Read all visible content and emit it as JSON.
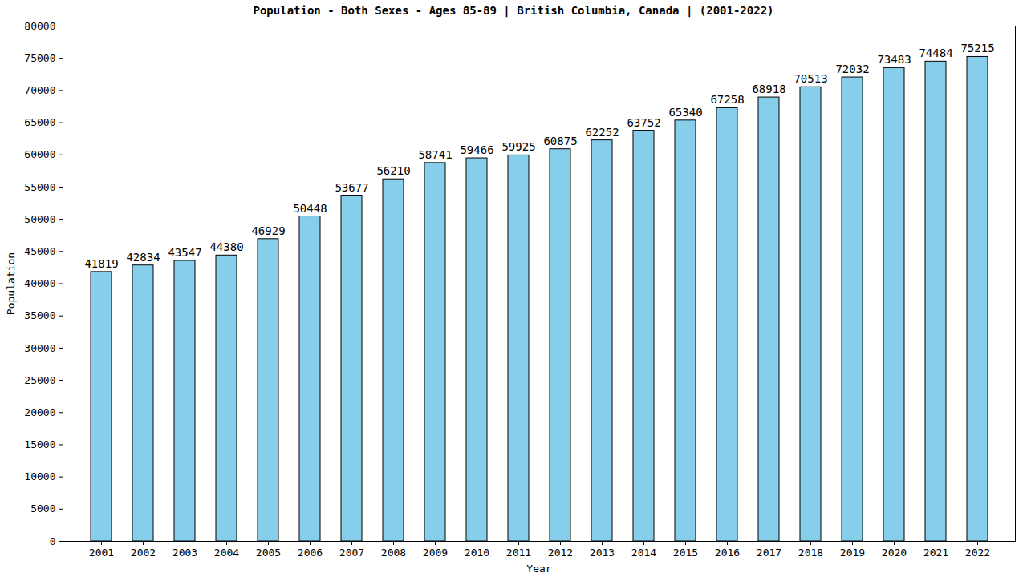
{
  "chart_data": {
    "type": "bar",
    "title": "Population - Both Sexes - Ages 85-89 | British Columbia, Canada |  (2001-2022)",
    "x_label": "Year",
    "y_label": "Population",
    "categories": [
      "2001",
      "2002",
      "2003",
      "2004",
      "2005",
      "2006",
      "2007",
      "2008",
      "2009",
      "2010",
      "2011",
      "2012",
      "2013",
      "2014",
      "2015",
      "2016",
      "2017",
      "2018",
      "2019",
      "2020",
      "2021",
      "2022"
    ],
    "values": [
      41819,
      42834,
      43547,
      44380,
      46929,
      50448,
      53677,
      56210,
      58741,
      59466,
      59925,
      60875,
      62252,
      63752,
      65340,
      67258,
      68918,
      70513,
      72032,
      73483,
      74484,
      75215
    ],
    "color": "#87ceeb",
    "ylim": [
      0,
      80000
    ],
    "yticks": [
      0,
      5000,
      10000,
      15000,
      20000,
      25000,
      30000,
      35000,
      40000,
      45000,
      50000,
      55000,
      60000,
      65000,
      70000,
      75000,
      80000
    ],
    "grid": false,
    "data_labels": true
  }
}
